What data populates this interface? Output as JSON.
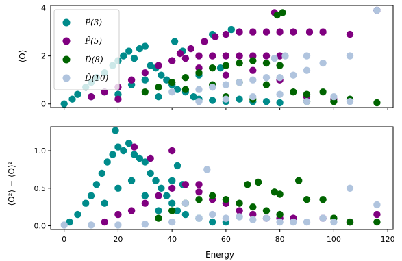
{
  "chart_data": [
    {
      "type": "scatter",
      "title": "",
      "xlabel": "",
      "ylabel": "⟨O⟩",
      "xlim": [
        -5,
        122
      ],
      "ylim": [
        -0.15,
        4.1
      ],
      "x_ticks": [
        0,
        20,
        40,
        60,
        80,
        100,
        120
      ],
      "y_ticks": [
        "0",
        "2",
        "4"
      ],
      "y_tick_values": [
        0,
        2,
        4
      ],
      "show_x_tick_labels": false,
      "legend_position": "upper-left",
      "legend": [
        {
          "label": "P̂(3)",
          "color": "#008b8b"
        },
        {
          "label": "P̂(5)",
          "color": "#800080"
        },
        {
          "label": "D̂(8)",
          "color": "#006400"
        },
        {
          "label": "D̂(10)",
          "color": "#b0c4de"
        }
      ],
      "series": [
        {
          "name": "P̂(3)",
          "color": "#008b8b",
          "points": [
            [
              0,
              0
            ],
            [
              3,
              0.2
            ],
            [
              5,
              0.4
            ],
            [
              8,
              0.7
            ],
            [
              10,
              0.9
            ],
            [
              12,
              1.1
            ],
            [
              15,
              1.3
            ],
            [
              18,
              1.6
            ],
            [
              20,
              1.8
            ],
            [
              22,
              2.0
            ],
            [
              24,
              2.2
            ],
            [
              26,
              1.9
            ],
            [
              28,
              2.3
            ],
            [
              30,
              2.4
            ],
            [
              32,
              1.6
            ],
            [
              34,
              1.5
            ],
            [
              36,
              1.2
            ],
            [
              38,
              1.0
            ],
            [
              40,
              0.8
            ],
            [
              42,
              0.6
            ],
            [
              45,
              0.5
            ],
            [
              48,
              0.3
            ],
            [
              50,
              0.2
            ],
            [
              55,
              0.15
            ],
            [
              60,
              0.1
            ],
            [
              65,
              0.2
            ],
            [
              70,
              0.1
            ],
            [
              75,
              0.1
            ],
            [
              80,
              0.05
            ],
            [
              41,
              2.6
            ],
            [
              44,
              2.2
            ],
            [
              55,
              2.9
            ],
            [
              62,
              3.1
            ],
            [
              58,
              1.5
            ],
            [
              50,
              1.2
            ],
            [
              116,
              3.9
            ],
            [
              20,
              0.4
            ],
            [
              25,
              0.8
            ],
            [
              30,
              1.0
            ],
            [
              35,
              0.3
            ],
            [
              15,
              0.5
            ],
            [
              10,
              0.3
            ]
          ]
        },
        {
          "name": "P̂(5)",
          "color": "#800080",
          "points": [
            [
              10,
              0.3
            ],
            [
              15,
              0.5
            ],
            [
              20,
              0.7
            ],
            [
              25,
              1.0
            ],
            [
              30,
              1.3
            ],
            [
              35,
              1.6
            ],
            [
              40,
              1.8
            ],
            [
              45,
              1.9
            ],
            [
              50,
              2.0
            ],
            [
              55,
              2.0
            ],
            [
              60,
              2.0
            ],
            [
              65,
              2.0
            ],
            [
              70,
              2.0
            ],
            [
              75,
              2.0
            ],
            [
              80,
              2.0
            ],
            [
              43,
              2.1
            ],
            [
              47,
              2.3
            ],
            [
              52,
              2.6
            ],
            [
              56,
              2.8
            ],
            [
              60,
              2.9
            ],
            [
              65,
              3.0
            ],
            [
              70,
              3.0
            ],
            [
              75,
              3.0
            ],
            [
              80,
              3.0
            ],
            [
              85,
              3.0
            ],
            [
              91,
              3.0
            ],
            [
              96,
              3.0
            ],
            [
              106,
              2.9
            ],
            [
              116,
              3.9
            ],
            [
              78,
              3.8
            ],
            [
              50,
              1.5
            ],
            [
              60,
              1.2
            ],
            [
              70,
              1.4
            ],
            [
              80,
              1.0
            ],
            [
              90,
              0.3
            ],
            [
              100,
              0.2
            ],
            [
              20,
              0.2
            ]
          ]
        },
        {
          "name": "D̂(8)",
          "color": "#006400",
          "points": [
            [
              30,
              0.5
            ],
            [
              35,
              0.7
            ],
            [
              40,
              0.9
            ],
            [
              45,
              1.1
            ],
            [
              50,
              1.3
            ],
            [
              55,
              1.5
            ],
            [
              60,
              1.6
            ],
            [
              65,
              1.7
            ],
            [
              70,
              1.8
            ],
            [
              75,
              1.7
            ],
            [
              80,
              1.6
            ],
            [
              45,
              0.6
            ],
            [
              55,
              0.8
            ],
            [
              65,
              0.9
            ],
            [
              75,
              0.8
            ],
            [
              85,
              0.5
            ],
            [
              90,
              0.4
            ],
            [
              96,
              0.5
            ],
            [
              79,
              3.7
            ],
            [
              81,
              3.8
            ],
            [
              100,
              0.1
            ],
            [
              106,
              0.2
            ],
            [
              116,
              0.05
            ],
            [
              60,
              0.3
            ],
            [
              70,
              0.2
            ],
            [
              90,
              0.1
            ]
          ]
        },
        {
          "name": "D̂(10)",
          "color": "#b0c4de",
          "points": [
            [
              40,
              0.5
            ],
            [
              50,
              0.6
            ],
            [
              55,
              0.7
            ],
            [
              60,
              0.8
            ],
            [
              65,
              0.9
            ],
            [
              70,
              1.0
            ],
            [
              75,
              1.1
            ],
            [
              80,
              1.1
            ],
            [
              85,
              1.2
            ],
            [
              90,
              1.4
            ],
            [
              96,
              1.7
            ],
            [
              106,
              2.0
            ],
            [
              116,
              3.9
            ],
            [
              78,
              1.9
            ],
            [
              82,
              2.0
            ],
            [
              90,
              2.0
            ],
            [
              60,
              0.2
            ],
            [
              70,
              0.3
            ],
            [
              80,
              0.4
            ],
            [
              90,
              0.1
            ],
            [
              100,
              0.3
            ],
            [
              106,
              0.1
            ],
            [
              50,
              0.1
            ]
          ]
        }
      ]
    },
    {
      "type": "scatter",
      "title": "",
      "xlabel": "Energy",
      "ylabel": "⟨O²⟩ − ⟨O⟩²",
      "xlim": [
        -5,
        122
      ],
      "ylim": [
        -0.05,
        1.32
      ],
      "x_ticks": [
        0,
        20,
        40,
        60,
        80,
        100,
        120
      ],
      "x_tick_labels": [
        "0",
        "20",
        "40",
        "60",
        "80",
        "100",
        "120"
      ],
      "y_ticks": [
        "0.0",
        "0.5",
        "1.0"
      ],
      "y_tick_values": [
        0,
        0.5,
        1.0
      ],
      "series": [
        {
          "name": "P̂(3)",
          "color": "#008b8b",
          "points": [
            [
              2,
              0.05
            ],
            [
              5,
              0.15
            ],
            [
              8,
              0.3
            ],
            [
              10,
              0.4
            ],
            [
              12,
              0.55
            ],
            [
              14,
              0.7
            ],
            [
              16,
              0.85
            ],
            [
              18,
              0.95
            ],
            [
              19,
              1.27
            ],
            [
              20,
              1.05
            ],
            [
              22,
              1.0
            ],
            [
              24,
              1.1
            ],
            [
              26,
              0.95
            ],
            [
              28,
              0.9
            ],
            [
              30,
              0.85
            ],
            [
              32,
              0.7
            ],
            [
              34,
              0.6
            ],
            [
              36,
              0.5
            ],
            [
              38,
              0.4
            ],
            [
              40,
              0.3
            ],
            [
              42,
              0.2
            ],
            [
              45,
              0.15
            ],
            [
              50,
              0.1
            ],
            [
              55,
              0.05
            ],
            [
              60,
              0.05
            ],
            [
              15,
              0.3
            ],
            [
              20,
              0.5
            ],
            [
              25,
              0.6
            ],
            [
              30,
              0.4
            ],
            [
              35,
              0.2
            ],
            [
              40,
              0.6
            ],
            [
              42,
              0.8
            ],
            [
              44,
              0.55
            ]
          ]
        },
        {
          "name": "P̂(5)",
          "color": "#800080",
          "points": [
            [
              15,
              0.05
            ],
            [
              20,
              0.15
            ],
            [
              25,
              0.2
            ],
            [
              30,
              0.3
            ],
            [
              35,
              0.4
            ],
            [
              40,
              0.5
            ],
            [
              45,
              0.55
            ],
            [
              50,
              0.45
            ],
            [
              55,
              0.35
            ],
            [
              60,
              0.3
            ],
            [
              65,
              0.2
            ],
            [
              70,
              0.15
            ],
            [
              75,
              0.1
            ],
            [
              80,
              0.1
            ],
            [
              26,
              1.05
            ],
            [
              32,
              0.9
            ],
            [
              40,
              1.0
            ],
            [
              50,
              0.55
            ],
            [
              60,
              0.3
            ],
            [
              85,
              0.1
            ],
            [
              96,
              0.1
            ],
            [
              106,
              0.05
            ],
            [
              116,
              0.15
            ]
          ]
        },
        {
          "name": "D̂(8)",
          "color": "#006400",
          "points": [
            [
              35,
              0.1
            ],
            [
              40,
              0.2
            ],
            [
              45,
              0.3
            ],
            [
              50,
              0.35
            ],
            [
              55,
              0.4
            ],
            [
              60,
              0.35
            ],
            [
              65,
              0.3
            ],
            [
              70,
              0.25
            ],
            [
              75,
              0.2
            ],
            [
              80,
              0.15
            ],
            [
              68,
              0.55
            ],
            [
              72,
              0.58
            ],
            [
              78,
              0.45
            ],
            [
              80,
              0.42
            ],
            [
              87,
              0.6
            ],
            [
              90,
              0.35
            ],
            [
              96,
              0.35
            ],
            [
              100,
              0.1
            ],
            [
              106,
              0.05
            ],
            [
              116,
              0.05
            ]
          ]
        },
        {
          "name": "D̂(10)",
          "color": "#b0c4de",
          "points": [
            [
              0,
              0.01
            ],
            [
              10,
              0.01
            ],
            [
              20,
              0.01
            ],
            [
              30,
              0.02
            ],
            [
              40,
              0.05
            ],
            [
              50,
              0.1
            ],
            [
              55,
              0.15
            ],
            [
              60,
              0.1
            ],
            [
              65,
              0.12
            ],
            [
              70,
              0.08
            ],
            [
              75,
              0.1
            ],
            [
              80,
              0.05
            ],
            [
              85,
              0.05
            ],
            [
              90,
              0.05
            ],
            [
              96,
              0.1
            ],
            [
              100,
              0.05
            ],
            [
              106,
              0.5
            ],
            [
              116,
              0.28
            ],
            [
              53,
              0.75
            ],
            [
              45,
              0.3
            ]
          ]
        }
      ]
    }
  ]
}
